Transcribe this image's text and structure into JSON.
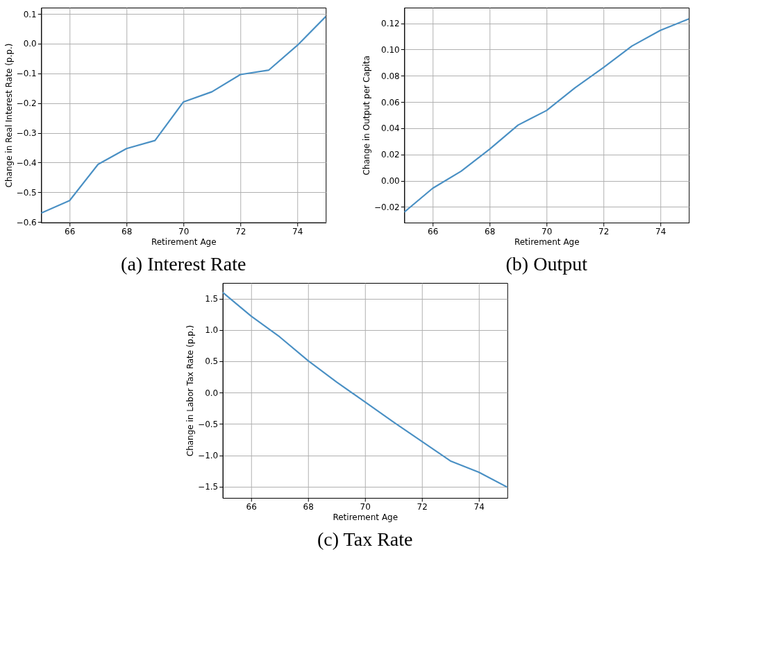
{
  "chart_data": [
    {
      "type": "line",
      "title": "(a) Interest Rate",
      "xlabel": "Retirement Age",
      "ylabel": "Change in Real Interest Rate (p.p.)",
      "x": [
        65,
        66,
        67,
        68,
        69,
        70,
        71,
        72,
        73,
        74,
        75
      ],
      "series": [
        {
          "color": "#4a90c4",
          "values": [
            -0.57,
            -0.528,
            -0.406,
            -0.353,
            -0.326,
            -0.196,
            -0.162,
            -0.104,
            -0.089,
            -0.006,
            0.091
          ]
        }
      ],
      "xlim": [
        65,
        75
      ],
      "xticks": [
        66,
        68,
        70,
        72,
        74
      ],
      "ylim": [
        -0.602,
        0.121
      ],
      "yticks": [
        -0.6,
        -0.5,
        -0.4,
        -0.3,
        -0.2,
        -0.1,
        {
          "value": 0,
          "label": "0.0"
        },
        0.1
      ],
      "grid": true
    },
    {
      "type": "line",
      "title": "(b) Output",
      "xlabel": "Retirement Age",
      "ylabel": "Change in Output per Capita",
      "x": [
        65,
        66,
        67,
        68,
        69,
        70,
        71,
        72,
        73,
        74,
        75
      ],
      "series": [
        {
          "color": "#4a90c4",
          "values": [
            -0.024,
            -0.0058,
            0.0072,
            0.024,
            0.0424,
            0.0535,
            0.0708,
            0.0863,
            0.1027,
            0.1147,
            0.1234
          ]
        }
      ],
      "xlim": [
        65,
        75
      ],
      "xticks": [
        66,
        68,
        70,
        72,
        74
      ],
      "ylim": [
        -0.032,
        0.132
      ],
      "yticks": [
        {
          "value": -0.02,
          "label": "−0.02"
        },
        {
          "value": 0,
          "label": "0.00"
        },
        {
          "value": 0.02,
          "label": "0.02"
        },
        {
          "value": 0.04,
          "label": "0.04"
        },
        {
          "value": 0.06,
          "label": "0.06"
        },
        {
          "value": 0.08,
          "label": "0.08"
        },
        {
          "value": 0.1,
          "label": "0.10"
        },
        {
          "value": 0.12,
          "label": "0.12"
        }
      ],
      "grid": true
    },
    {
      "type": "line",
      "title": "(c) Tax Rate",
      "xlabel": "Retirement Age",
      "ylabel": "Change in Labor Tax Rate (p.p.)",
      "x": [
        65,
        66,
        67,
        68,
        69,
        70,
        71,
        72,
        73,
        74,
        75
      ],
      "series": [
        {
          "color": "#4a90c4",
          "values": [
            1.6,
            1.22,
            0.89,
            0.51,
            0.17,
            -0.15,
            -0.47,
            -0.78,
            -1.09,
            -1.27,
            -1.51
          ]
        }
      ],
      "xlim": [
        65,
        75
      ],
      "xticks": [
        66,
        68,
        70,
        72,
        74
      ],
      "ylim": [
        -1.68,
        1.75
      ],
      "yticks": [
        {
          "value": -1.5,
          "label": "−1.5"
        },
        {
          "value": -1.0,
          "label": "−1.0"
        },
        {
          "value": -0.5,
          "label": "−0.5"
        },
        {
          "value": 0,
          "label": "0.0"
        },
        {
          "value": 0.5,
          "label": "0.5"
        },
        {
          "value": 1.0,
          "label": "1.0"
        },
        {
          "value": 1.5,
          "label": "1.5"
        }
      ],
      "grid": true
    }
  ]
}
